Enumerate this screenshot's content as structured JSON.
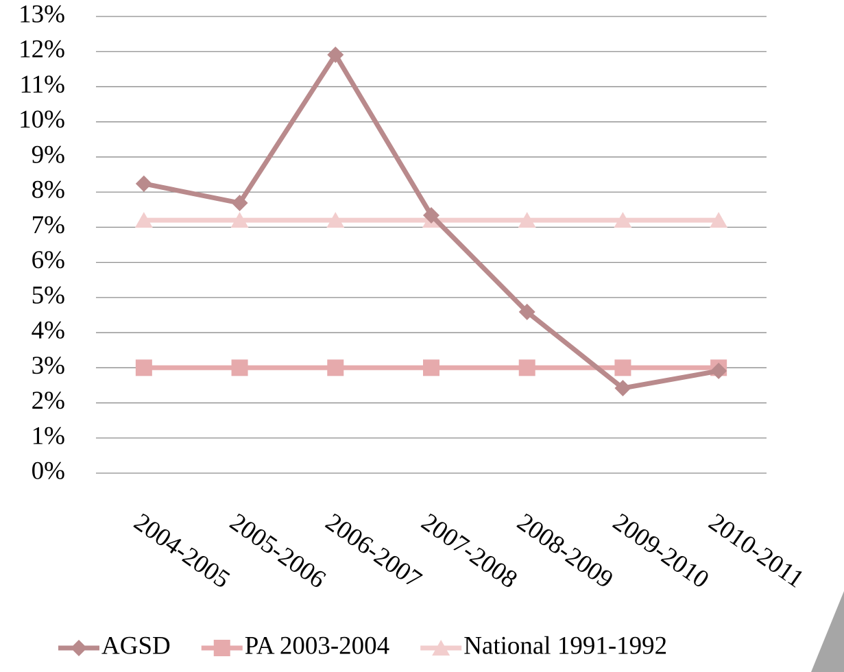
{
  "chart_data": {
    "type": "line",
    "categories": [
      "2004-2005",
      "2005-2006",
      "2006-2007",
      "2007-2008",
      "2008-2009",
      "2009-2010",
      "2010-2011"
    ],
    "series": [
      {
        "name": "AGSD",
        "color": "#b98a8c",
        "marker": "diamond",
        "values": [
          8.24,
          7.69,
          11.91,
          7.34,
          4.59,
          2.42,
          2.91
        ]
      },
      {
        "name": "PA 2003-2004",
        "color": "#e6aaac",
        "marker": "square",
        "values": [
          3,
          3,
          3,
          3,
          3,
          3,
          3
        ]
      },
      {
        "name": "National 1991-1992",
        "color": "#f2cdcd",
        "marker": "triangle",
        "values": [
          7.2,
          7.2,
          7.2,
          7.2,
          7.2,
          7.2,
          7.2
        ]
      }
    ],
    "ylim": [
      0,
      13
    ],
    "yticks": [
      {
        "value": 0,
        "label": "0%"
      },
      {
        "value": 1,
        "label": "1%"
      },
      {
        "value": 2,
        "label": "2%"
      },
      {
        "value": 3,
        "label": "3%"
      },
      {
        "value": 4,
        "label": "4%"
      },
      {
        "value": 5,
        "label": "5%"
      },
      {
        "value": 6,
        "label": "6%"
      },
      {
        "value": 7,
        "label": "7%"
      },
      {
        "value": 8,
        "label": "8%"
      },
      {
        "value": 9,
        "label": "9%"
      },
      {
        "value": 10,
        "label": "10%"
      },
      {
        "value": 11,
        "label": "11%"
      },
      {
        "value": 12,
        "label": "12%"
      },
      {
        "value": 13,
        "label": "13%"
      }
    ],
    "grid": true,
    "legend": "bottom"
  }
}
